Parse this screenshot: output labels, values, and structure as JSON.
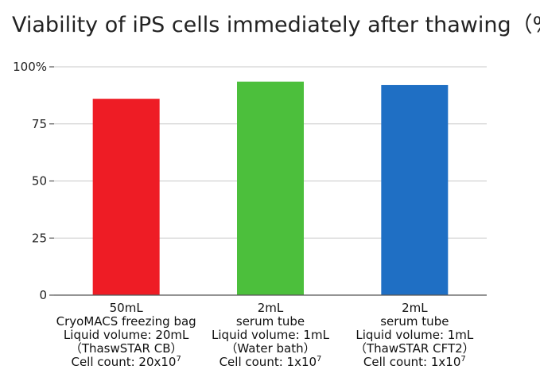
{
  "chart_data": {
    "type": "bar",
    "title": "Viability of iPS cells immediately after thawing（%）",
    "xlabel": "",
    "ylabel": "",
    "ylim": [
      0,
      100
    ],
    "yticks": [
      "0",
      "25",
      "50",
      "75",
      "100%"
    ],
    "ytick_values": [
      0,
      25,
      50,
      75,
      100
    ],
    "grid": true,
    "legend": "none",
    "categories": [
      {
        "lines": [
          "50mL",
          "CryoMACS freezing bag",
          "Liquid volume: 20mL",
          "（ThaswSTAR CB）"
        ],
        "count_prefix": "Cell count: 20x10",
        "count_exp": "7"
      },
      {
        "lines": [
          "2mL",
          "serum tube",
          "Liquid volume: 1mL",
          "（Water bath）"
        ],
        "count_prefix": "Cell count: 1x10",
        "count_exp": "7"
      },
      {
        "lines": [
          "2mL",
          "serum tube",
          "Liquid volume: 1mL",
          "（ThawSTAR CFT2）"
        ],
        "count_prefix": "Cell count: 1x10",
        "count_exp": "7"
      }
    ],
    "values": [
      86,
      93.5,
      92
    ],
    "colors": [
      "#ee1c25",
      "#4cbf3c",
      "#1f6fc4"
    ]
  }
}
